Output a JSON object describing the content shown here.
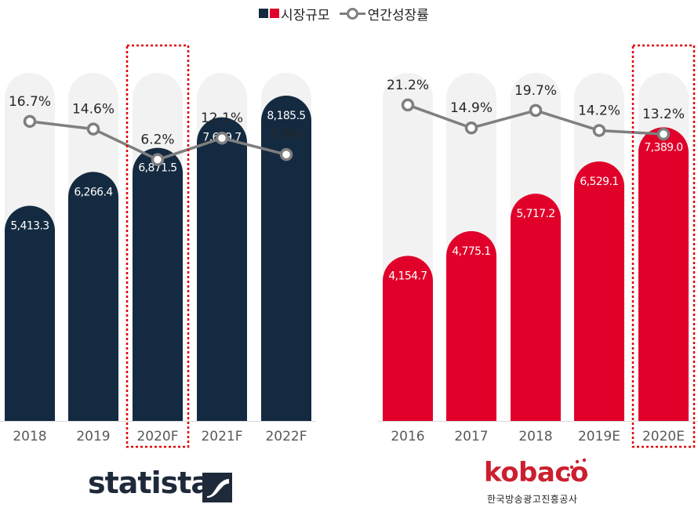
{
  "legend": {
    "bar_label": "시장규모",
    "line_label": "연간성장률"
  },
  "colors": {
    "left_bar": "#142a40",
    "right_bar": "#e0002a",
    "track": "#f2f2f2",
    "line": "#7f7f7f",
    "highlight_box": "#e00000",
    "axis_text": "#595959"
  },
  "chart_data": [
    {
      "type": "bar",
      "source_logo": "statista",
      "categories": [
        "2018",
        "2019",
        "2020F",
        "2021F",
        "2022F"
      ],
      "series": [
        {
          "name": "시장규모",
          "values": [
            5413.3,
            6266.4,
            6871.5,
            7639.7,
            8185.5
          ]
        },
        {
          "name": "연간성장률",
          "type": "line",
          "unit": "%",
          "values": [
            16.7,
            14.6,
            6.2,
            12.1,
            7.6
          ]
        }
      ],
      "value_labels": [
        "5,413.3",
        "6,266.4",
        "6,871.5",
        "7,639.7",
        "8,185.5"
      ],
      "growth_labels": [
        "16.7%",
        "14.6%",
        "6.2%",
        "12.1%",
        "7.6%"
      ],
      "highlighted_category": "2020F"
    },
    {
      "type": "bar",
      "source_logo": "kobaco",
      "categories": [
        "2016",
        "2017",
        "2018",
        "2019E",
        "2020E"
      ],
      "series": [
        {
          "name": "시장규모",
          "values": [
            4154.7,
            4775.1,
            5717.2,
            6529.1,
            7389.0
          ]
        },
        {
          "name": "연간성장률",
          "type": "line",
          "unit": "%",
          "values": [
            21.2,
            14.9,
            19.7,
            14.2,
            13.2
          ]
        }
      ],
      "value_labels": [
        "4,154.7",
        "4,775.1",
        "5,717.2",
        "6,529.1",
        "7,389.0"
      ],
      "growth_labels": [
        "21.2%",
        "14.9%",
        "19.7%",
        "14.2%",
        "13.2%"
      ],
      "highlighted_category": "2020E"
    }
  ],
  "logos": {
    "statista": "statista",
    "kobaco": "kobaco",
    "kobaco_sub": "한국방송광고진흥공사"
  }
}
